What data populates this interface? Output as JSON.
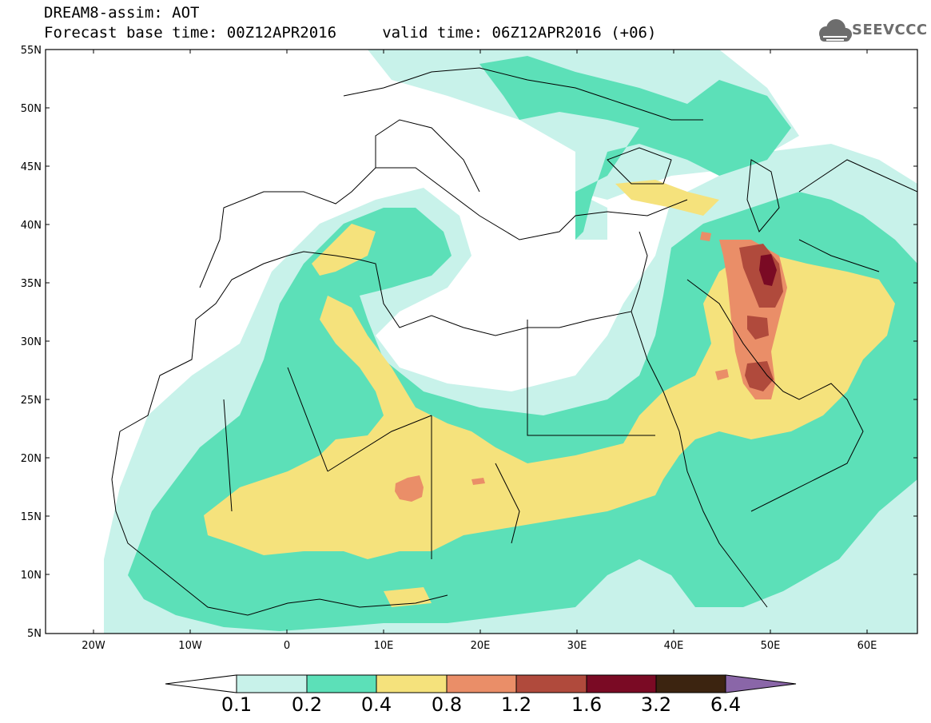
{
  "title": {
    "line1": "DREAM8-assim: AOT",
    "line2": "Forecast base time: 00Z12APR2016     valid time: 06Z12APR2016 (+06)"
  },
  "logo": {
    "text": "SEEVCCC",
    "icon": "cloud-icon",
    "color": "#6d6d6d"
  },
  "axes": {
    "lat_labels": [
      "55N",
      "50N",
      "45N",
      "40N",
      "35N",
      "30N",
      "25N",
      "20N",
      "15N",
      "10N",
      "5N"
    ],
    "lon_labels": [
      "20W",
      "10W",
      "0",
      "10E",
      "20E",
      "30E",
      "40E",
      "50E",
      "60E"
    ],
    "lat_range": [
      5,
      55
    ],
    "lon_range": [
      -25,
      65
    ]
  },
  "colorbar": {
    "levels": [
      "0.1",
      "0.2",
      "0.4",
      "0.8",
      "1.2",
      "1.6",
      "3.2",
      "6.4"
    ],
    "colors": [
      "#ffffff",
      "#c8f2ea",
      "#5ce0b8",
      "#f5e27c",
      "#ea8e68",
      "#b04a3c",
      "#7a0a24",
      "#3c2410",
      "#8a66a8"
    ]
  }
}
